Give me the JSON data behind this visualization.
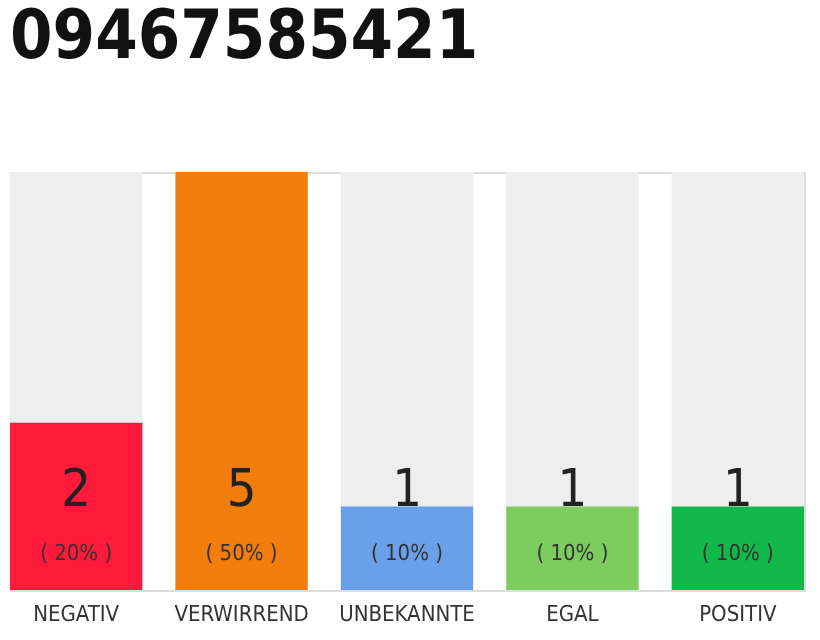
{
  "chart_data": {
    "type": "bar",
    "title": "09467585421",
    "categories": [
      "NEGATIV",
      "VERWIRREND",
      "UNBEKANNTE",
      "EGAL",
      "POSITIV"
    ],
    "tick_labels": "x",
    "data_labels": true,
    "bands": [
      {
        "axis": "y",
        "from": 0,
        "to": 5,
        "color": "#eeeeee"
      }
    ],
    "annotations": [
      "( 20% )",
      "( 50% )",
      "( 10% )",
      "( 10% )",
      "( 10% )"
    ],
    "series": [
      {
        "colors": [
          "#ff1a3c",
          "#f27d0c",
          "#6a9fea",
          "#7dcc5e",
          "#12b84a"
        ],
        "values": [
          2,
          5,
          1,
          1,
          1
        ]
      }
    ]
  }
}
